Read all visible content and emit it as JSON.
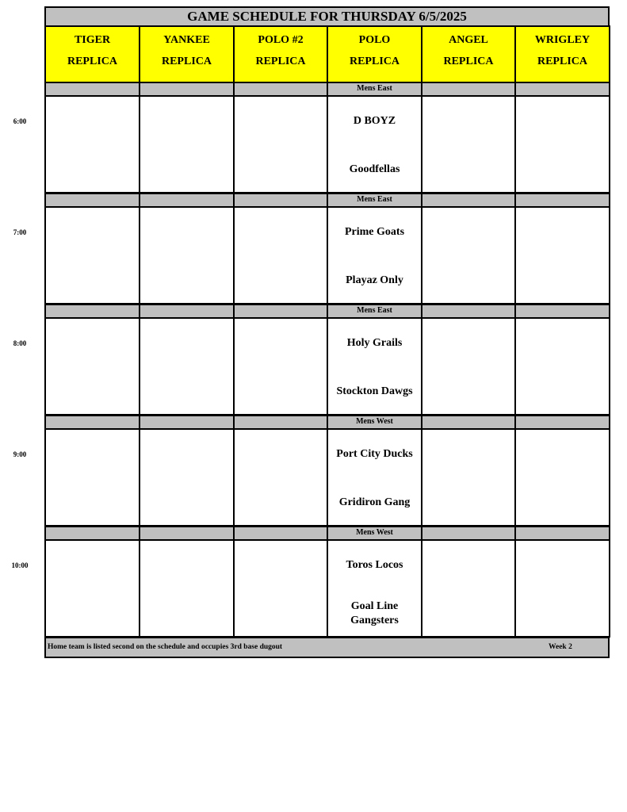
{
  "title": "GAME SCHEDULE FOR THURSDAY 6/5/2025",
  "fields": [
    {
      "line1": "TIGER",
      "line2": "REPLICA"
    },
    {
      "line1": "YANKEE",
      "line2": "REPLICA"
    },
    {
      "line1": "POLO #2",
      "line2": "REPLICA"
    },
    {
      "line1": "POLO",
      "line2": "REPLICA"
    },
    {
      "line1": "ANGEL",
      "line2": "REPLICA"
    },
    {
      "line1": "WRIGLEY",
      "line2": "REPLICA"
    }
  ],
  "slots": [
    {
      "time": "6:00",
      "games": [
        null,
        null,
        null,
        {
          "division": "Mens East",
          "away": "D BOYZ",
          "home": "Goodfellas"
        },
        null,
        null
      ]
    },
    {
      "time": "7:00",
      "games": [
        null,
        null,
        null,
        {
          "division": "Mens East",
          "away": "Prime Goats",
          "home": "Playaz Only"
        },
        null,
        null
      ]
    },
    {
      "time": "8:00",
      "games": [
        null,
        null,
        null,
        {
          "division": "Mens East",
          "away": "Holy Grails",
          "home": "Stockton Dawgs"
        },
        null,
        null
      ]
    },
    {
      "time": "9:00",
      "games": [
        null,
        null,
        null,
        {
          "division": "Mens West",
          "away": "Port City Ducks",
          "home": "Gridiron Gang"
        },
        null,
        null
      ]
    },
    {
      "time": "10:00",
      "games": [
        null,
        null,
        null,
        {
          "division": "Mens West",
          "away": "Toros Locos",
          "home": "Goal Line Gangsters"
        },
        null,
        null
      ]
    }
  ],
  "footer": {
    "note": "Home team is listed second on the schedule and occupies 3rd base dugout",
    "week": "Week 2"
  },
  "colors": {
    "header_bg": "#ffff00",
    "band_bg": "#c0c0c0"
  }
}
